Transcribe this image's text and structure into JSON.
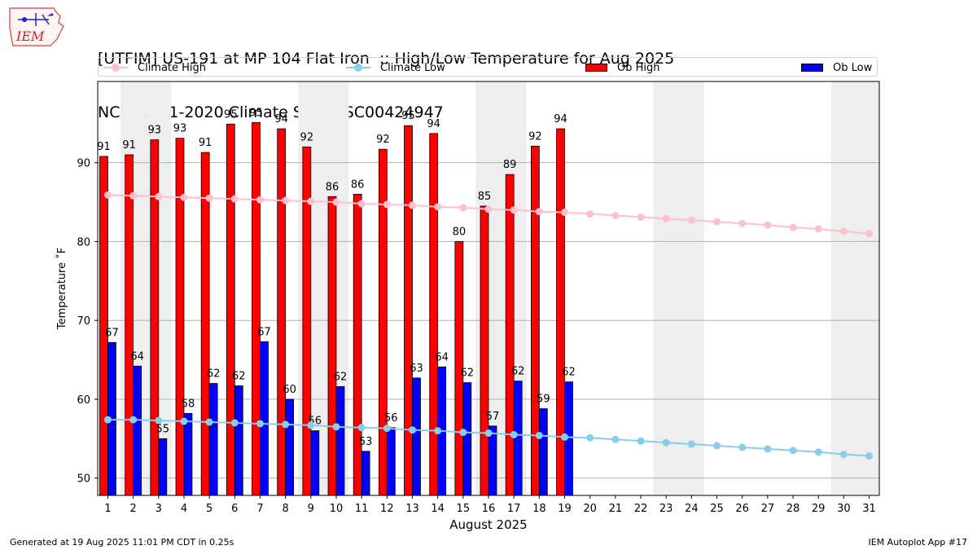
{
  "header": {
    "title_line1": "[UTFIM] US-191 at MP 104 Flat Iron  :: High/Low Temperature for Aug 2025",
    "title_line2": "NCEI 1991-2020 Climate Site: USC00424947"
  },
  "logo": {
    "text": "IEM"
  },
  "legend": [
    {
      "label": "Climate High",
      "color": "#ffc0cb",
      "kind": "line"
    },
    {
      "label": "Climate Low",
      "color": "#87ceeb",
      "kind": "line"
    },
    {
      "label": "Ob High",
      "color": "#ff0000",
      "kind": "bar"
    },
    {
      "label": "Ob Low",
      "color": "#0000ff",
      "kind": "bar"
    }
  ],
  "footer": {
    "left": "Generated at 19 Aug 2025 11:01 PM CDT in 0.25s",
    "right": "IEM Autoplot App #17"
  },
  "chart_data": {
    "type": "bar",
    "xlabel": "August 2025",
    "ylabel": "Temperature ˚F",
    "ylim": [
      47.8,
      100.3
    ],
    "yticks": [
      50,
      60,
      70,
      80,
      90
    ],
    "grid": "horizontal",
    "legend_position": "top",
    "days": [
      1,
      2,
      3,
      4,
      5,
      6,
      7,
      8,
      9,
      10,
      11,
      12,
      13,
      14,
      15,
      16,
      17,
      18,
      19,
      20,
      21,
      22,
      23,
      24,
      25,
      26,
      27,
      28,
      29,
      30,
      31
    ],
    "weekend_days": [
      2,
      3,
      9,
      10,
      16,
      17,
      23,
      24,
      30,
      31
    ],
    "ob_high": [
      90.8,
      91.0,
      92.9,
      93.1,
      91.3,
      94.9,
      95.1,
      94.3,
      92.0,
      85.7,
      86.0,
      91.7,
      94.7,
      93.7,
      80.0,
      84.5,
      88.5,
      92.1,
      94.3
    ],
    "ob_high_labels": [
      "91",
      "91",
      "93",
      "93",
      "91",
      "95",
      "95",
      "94",
      "92",
      "86",
      "86",
      "92",
      "95",
      "94",
      "80",
      "85",
      "89",
      "92",
      "94"
    ],
    "ob_low": [
      67.2,
      64.2,
      55.0,
      58.2,
      62.0,
      61.7,
      67.3,
      60.0,
      56.0,
      61.6,
      53.4,
      56.4,
      62.7,
      64.1,
      62.1,
      56.6,
      62.3,
      58.8,
      62.2
    ],
    "ob_low_labels": [
      "67",
      "64",
      "55",
      "58",
      "62",
      "62",
      "67",
      "60",
      "56",
      "62",
      "53",
      "56",
      "63",
      "64",
      "62",
      "57",
      "62",
      "59",
      "62"
    ],
    "climate_high": [
      85.9,
      85.8,
      85.7,
      85.6,
      85.5,
      85.4,
      85.3,
      85.2,
      85.1,
      85.0,
      84.8,
      84.7,
      84.6,
      84.4,
      84.3,
      84.1,
      84.0,
      83.8,
      83.7,
      83.5,
      83.3,
      83.1,
      82.9,
      82.7,
      82.5,
      82.3,
      82.1,
      81.8,
      81.6,
      81.3,
      81.0
    ],
    "climate_low": [
      57.4,
      57.4,
      57.3,
      57.2,
      57.1,
      57.0,
      56.9,
      56.8,
      56.7,
      56.5,
      56.4,
      56.3,
      56.1,
      56.0,
      55.8,
      55.7,
      55.5,
      55.4,
      55.2,
      55.1,
      54.9,
      54.7,
      54.5,
      54.3,
      54.1,
      53.9,
      53.7,
      53.5,
      53.3,
      53.0,
      52.8
    ]
  }
}
